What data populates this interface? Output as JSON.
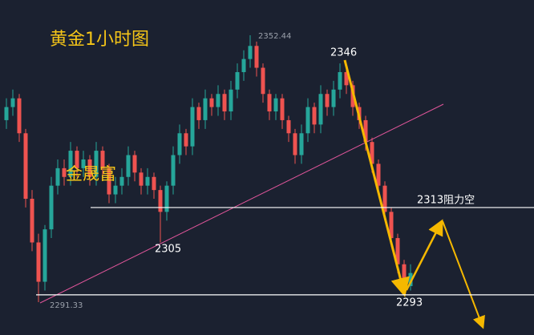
{
  "chart_data": {
    "type": "candlestick",
    "title": "黄金1小时图",
    "watermark": "金晟富",
    "up_color": "#26a69a",
    "down_color": "#ef5350",
    "open": [
      2333,
      2336,
      2338,
      2330,
      2315,
      2305,
      2296,
      2308,
      2318,
      2322,
      2320,
      2326,
      2322,
      2324,
      2320,
      2326,
      2322,
      2316,
      2318,
      2320,
      2325,
      2321,
      2318,
      2320,
      2317,
      2312,
      2318,
      2325,
      2330,
      2327,
      2336,
      2333,
      2338,
      2336,
      2339,
      2335,
      2340,
      2344,
      2347,
      2350,
      2345,
      2339,
      2335,
      2338,
      2333,
      2330,
      2325,
      2330,
      2336,
      2332,
      2339,
      2336,
      2340,
      2344,
      2341,
      2336,
      2333,
      2328,
      2323,
      2318,
      2312,
      2306,
      2300,
      2295
    ],
    "high": [
      2338,
      2340,
      2339,
      2331,
      2317,
      2307,
      2309,
      2320,
      2324,
      2324,
      2328,
      2327,
      2326,
      2325,
      2328,
      2327,
      2323,
      2320,
      2322,
      2327,
      2326,
      2322,
      2322,
      2321,
      2318,
      2319,
      2327,
      2332,
      2331,
      2338,
      2337,
      2340,
      2339,
      2341,
      2340,
      2342,
      2346,
      2349,
      2352.44,
      2351,
      2346,
      2340,
      2339,
      2339,
      2334,
      2331,
      2332,
      2338,
      2337,
      2341,
      2340,
      2342,
      2346,
      2345,
      2342,
      2337,
      2334,
      2329,
      2324,
      2319,
      2313,
      2307,
      2301,
      2300
    ],
    "low": [
      2331,
      2334,
      2328,
      2313,
      2303,
      2291.33,
      2294,
      2306,
      2316,
      2318,
      2318,
      2320,
      2320,
      2318,
      2318,
      2320,
      2314,
      2314,
      2316,
      2318,
      2319,
      2316,
      2316,
      2315,
      2305,
      2310,
      2316,
      2323,
      2325,
      2325,
      2331,
      2331,
      2334,
      2334,
      2333,
      2333,
      2338,
      2342,
      2345,
      2343,
      2337,
      2333,
      2333,
      2331,
      2328,
      2323,
      2323,
      2328,
      2330,
      2330,
      2334,
      2334,
      2338,
      2339,
      2334,
      2331,
      2326,
      2321,
      2316,
      2310,
      2304,
      2298,
      2293,
      2294
    ],
    "close": [
      2336,
      2338,
      2330,
      2315,
      2305,
      2296,
      2308,
      2318,
      2322,
      2320,
      2326,
      2322,
      2324,
      2320,
      2326,
      2322,
      2316,
      2318,
      2320,
      2325,
      2321,
      2318,
      2320,
      2317,
      2312,
      2318,
      2325,
      2330,
      2327,
      2336,
      2333,
      2338,
      2336,
      2339,
      2335,
      2340,
      2344,
      2347,
      2350,
      2345,
      2339,
      2335,
      2338,
      2333,
      2330,
      2325,
      2330,
      2336,
      2332,
      2339,
      2336,
      2340,
      2344,
      2341,
      2336,
      2333,
      2328,
      2323,
      2318,
      2312,
      2306,
      2300,
      2295,
      2298
    ],
    "levels": [
      {
        "value": 2313,
        "label": "2313阻力空"
      },
      {
        "value": 2293,
        "label": "2293"
      }
    ],
    "labels": {
      "high": "2352.44",
      "low": "2291.33",
      "peak": "2346",
      "support": "2305"
    }
  }
}
